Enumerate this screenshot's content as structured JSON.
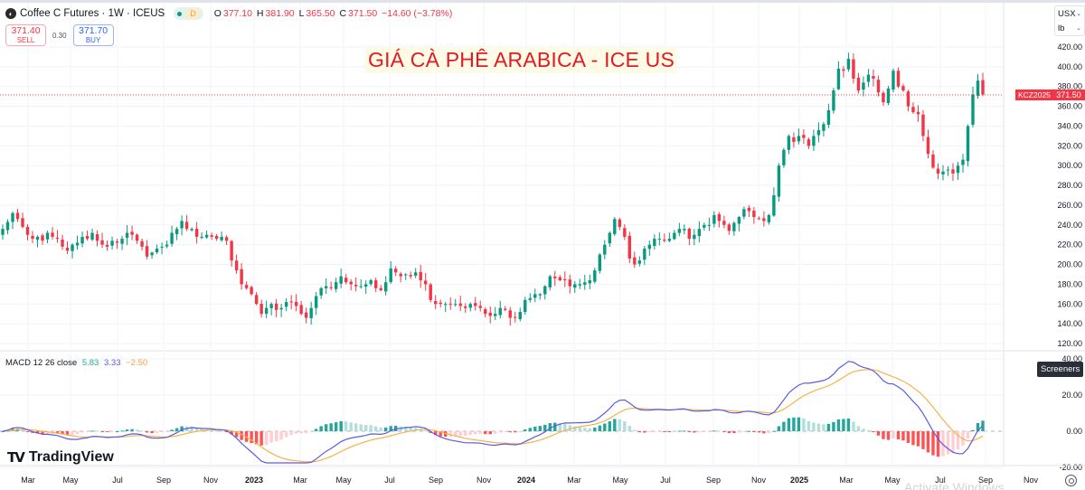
{
  "header": {
    "symbol_logo": "coffee-logo-icon",
    "title": "Coffee C Futures · 1W · ICEUS",
    "status_badge": "D",
    "ohlc": {
      "open_label": "O",
      "open": "377.10",
      "high_label": "H",
      "high": "381.90",
      "low_label": "L",
      "low": "365.50",
      "close_label": "C",
      "close": "371.50",
      "change": "−14.60 (−3.78%)"
    }
  },
  "trade": {
    "sell_price": "371.40",
    "sell_label": "SELL",
    "spread": "0.30",
    "buy_price": "371.70",
    "buy_label": "BUY"
  },
  "headline": "GIÁ CÀ PHÊ ARABICA - ICE US",
  "units": {
    "currency": "USX",
    "unit": "lb"
  },
  "price_tags": {
    "ticker": "KCZ2025",
    "last": "371.50"
  },
  "macd": {
    "label": "MACD 12 26 close",
    "hist": "5.83",
    "macd": "3.33",
    "signal": "−2.50"
  },
  "screeners_tooltip": "Screeners",
  "branding": "TradingView",
  "watermark": "Activate Windows",
  "colors": {
    "up": "#089981",
    "down": "#f23645",
    "macd_line": "#5b5ce0",
    "signal_line": "#f7b24a",
    "hist_up_strong": "#26a69a",
    "hist_up_weak": "#b2dfdb",
    "hist_down_strong": "#ff5252",
    "hist_down_weak": "#ffcdd2",
    "headline": "#e01b24"
  },
  "chart_data": [
    {
      "type": "candlestick",
      "title": "Coffee C Futures · 1W · ICEUS",
      "xlabel": "",
      "ylabel": "USX / lb",
      "ylim": [
        115,
        432
      ],
      "y_ticks": [
        "120.00",
        "140.00",
        "160.00",
        "180.00",
        "200.00",
        "220.00",
        "240.00",
        "260.00",
        "280.00",
        "300.00",
        "320.00",
        "340.00",
        "360.00",
        "380.00",
        "400.00",
        "420.00"
      ],
      "x_ticks": [
        "Mar",
        "May",
        "Jul",
        "Sep",
        "Nov",
        "2023",
        "Mar",
        "May",
        "Jul",
        "Sep",
        "Nov",
        "2024",
        "Mar",
        "May",
        "Jul",
        "Sep",
        "Nov",
        "2025",
        "Mar",
        "May",
        "Jul",
        "Sep",
        "Nov"
      ],
      "grid": true,
      "last_price": 371.5,
      "closes": [
        236,
        243,
        252,
        246,
        238,
        230,
        226,
        228,
        224,
        232,
        228,
        226,
        218,
        214,
        220,
        222,
        228,
        226,
        232,
        224,
        220,
        218,
        224,
        222,
        226,
        232,
        230,
        224,
        218,
        208,
        212,
        216,
        218,
        220,
        232,
        236,
        244,
        236,
        236,
        228,
        228,
        230,
        228,
        226,
        228,
        224,
        204,
        194,
        180,
        176,
        170,
        160,
        150,
        156,
        160,
        154,
        156,
        162,
        162,
        158,
        150,
        146,
        156,
        168,
        176,
        178,
        176,
        182,
        188,
        182,
        180,
        178,
        178,
        180,
        184,
        176,
        174,
        182,
        196,
        192,
        188,
        190,
        188,
        192,
        184,
        180,
        164,
        160,
        160,
        160,
        160,
        160,
        158,
        156,
        160,
        158,
        156,
        150,
        148,
        150,
        156,
        154,
        146,
        146,
        152,
        164,
        166,
        170,
        170,
        178,
        188,
        186,
        184,
        184,
        178,
        180,
        180,
        182,
        184,
        194,
        210,
        220,
        232,
        246,
        238,
        228,
        206,
        200,
        204,
        216,
        220,
        226,
        226,
        224,
        226,
        232,
        236,
        236,
        226,
        230,
        236,
        240,
        240,
        250,
        244,
        240,
        234,
        242,
        248,
        256,
        254,
        248,
        246,
        244,
        250,
        270,
        300,
        316,
        330,
        324,
        330,
        328,
        320,
        330,
        336,
        342,
        356,
        376,
        398,
        396,
        408,
        388,
        376,
        384,
        392,
        388,
        374,
        364,
        378,
        396,
        380,
        376,
        360,
        354,
        352,
        330,
        312,
        298,
        292,
        294,
        296,
        292,
        300,
        306,
        340,
        372,
        386,
        372
      ],
      "macd_subplot": {
        "type": "line+histogram",
        "title": "MACD 12 26 close",
        "ylim": [
          -22,
          40
        ],
        "y_ticks": [
          "-20.00",
          "0.00",
          "20.00",
          "40.00"
        ],
        "last_values": {
          "histogram": 5.83,
          "macd": 3.33,
          "signal": -2.5
        }
      }
    }
  ]
}
